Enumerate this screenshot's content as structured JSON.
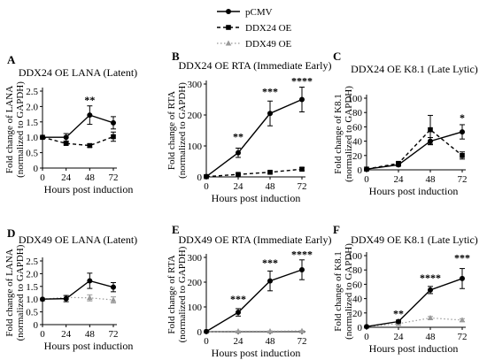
{
  "legend": {
    "entries": [
      {
        "label": "pCMV",
        "marker": "circle",
        "line": "solid"
      },
      {
        "label": "DDX24 OE",
        "marker": "square",
        "line": "dashed"
      },
      {
        "label": "DDX49 OE",
        "marker": "triangle",
        "line": "dotted"
      }
    ]
  },
  "colors": {
    "pcmv": "#000000",
    "ddx24": "#000000",
    "ddx49": "#999999"
  },
  "chart_data": [
    {
      "panel": "A",
      "type": "line",
      "title": "DDX24 OE LANA (Latent)",
      "xlabel": "Hours post induction",
      "ylabel_lines": [
        "Fold change of LANA",
        "(normalized to GAPDH)"
      ],
      "x": [
        0,
        24,
        48,
        72
      ],
      "xlim": [
        0,
        72
      ],
      "ylim": [
        0,
        2.5
      ],
      "xticks": [
        0,
        24,
        48,
        72
      ],
      "yticks": [
        0,
        0.5,
        1.0,
        1.5,
        2.0,
        2.5
      ],
      "yticklabels": [
        "0",
        "0.5",
        "1.0",
        "1.5",
        "2.0",
        "2.5"
      ],
      "series": [
        {
          "name": "pCMV",
          "key": "pcmv",
          "values": [
            1.0,
            1.0,
            1.72,
            1.47
          ],
          "errors": [
            0,
            0.12,
            0.3,
            0.2
          ]
        },
        {
          "name": "DDX24 OE",
          "key": "ddx24",
          "values": [
            1.0,
            0.8,
            0.73,
            1.02
          ],
          "errors": [
            0,
            0.05,
            0.05,
            0.15
          ]
        }
      ],
      "annotations": [
        {
          "x": 48,
          "text": "**",
          "y": 2.1
        }
      ]
    },
    {
      "panel": "B",
      "type": "line",
      "title": "DDX24 OE RTA (Immediate Early)",
      "xlabel": "Hours post induction",
      "ylabel_lines": [
        "Fold change of RTA",
        "(normalized to GAPDH)"
      ],
      "x": [
        0,
        24,
        48,
        72
      ],
      "xlim": [
        0,
        72
      ],
      "ylim": [
        0,
        300
      ],
      "xticks": [
        0,
        24,
        48,
        72
      ],
      "yticks": [
        0,
        100,
        200,
        300
      ],
      "yticklabels": [
        "0",
        "100",
        "200",
        "300"
      ],
      "series": [
        {
          "name": "pCMV",
          "key": "pcmv",
          "values": [
            1,
            78,
            205,
            250
          ],
          "errors": [
            0,
            15,
            40,
            40
          ]
        },
        {
          "name": "DDX24 OE",
          "key": "ddx24",
          "values": [
            1,
            8,
            15,
            25
          ],
          "errors": [
            0,
            3,
            3,
            5
          ]
        }
      ],
      "annotations": [
        {
          "x": 24,
          "text": "**",
          "y": 118
        },
        {
          "x": 48,
          "text": "***",
          "y": 265
        },
        {
          "x": 72,
          "text": "****",
          "y": 298
        }
      ]
    },
    {
      "panel": "C",
      "type": "line",
      "title": "DDX24 OE K8.1 (Late Lytic)",
      "xlabel": "Hours post induction",
      "ylabel_lines": [
        "Fold change of K8.1",
        "(normalized to GAPDH)"
      ],
      "x": [
        0,
        24,
        48,
        72
      ],
      "xlim": [
        0,
        72
      ],
      "ylim": [
        0,
        100
      ],
      "xticks": [
        0,
        24,
        48,
        72
      ],
      "yticks": [
        0,
        20,
        40,
        60,
        80,
        100
      ],
      "yticklabels": [
        "0",
        "20",
        "40",
        "60",
        "80",
        "100"
      ],
      "series": [
        {
          "name": "pCMV",
          "key": "pcmv",
          "values": [
            1,
            7,
            40,
            53
          ],
          "errors": [
            0,
            2,
            5,
            10
          ]
        },
        {
          "name": "DDX24 OE",
          "key": "ddx24",
          "values": [
            1,
            9,
            56,
            20
          ],
          "errors": [
            0,
            2,
            20,
            5
          ]
        }
      ],
      "annotations": [
        {
          "x": 72,
          "text": "*",
          "y": 68
        }
      ]
    },
    {
      "panel": "D",
      "type": "line",
      "title": "DDX49 OE LANA (Latent)",
      "xlabel": "Hours post induction",
      "ylabel_lines": [
        "Fold change of LANA",
        "(normalized to GAPDH)"
      ],
      "x": [
        0,
        24,
        48,
        72
      ],
      "xlim": [
        0,
        72
      ],
      "ylim": [
        0,
        2.5
      ],
      "xticks": [
        0,
        24,
        48,
        72
      ],
      "yticks": [
        0,
        0.5,
        1.0,
        1.5,
        2.0,
        2.5
      ],
      "yticklabels": [
        "0",
        "0.5",
        "1.0",
        "1.5",
        "2.0",
        "2.5"
      ],
      "series": [
        {
          "name": "pCMV",
          "key": "pcmv",
          "values": [
            1.0,
            1.02,
            1.72,
            1.47
          ],
          "errors": [
            0,
            0.12,
            0.3,
            0.18
          ]
        },
        {
          "name": "DDX49 OE",
          "key": "ddx49",
          "values": [
            1.0,
            1.07,
            1.05,
            0.97
          ],
          "errors": [
            0,
            0.08,
            0.12,
            0.12
          ]
        }
      ],
      "annotations": []
    },
    {
      "panel": "E",
      "type": "line",
      "title": "DDX49 OE RTA (Immediate Early)",
      "xlabel": "Hours post induction",
      "ylabel_lines": [
        "Fold change of RTA",
        "(normalized to GAPDH)"
      ],
      "x": [
        0,
        24,
        48,
        72
      ],
      "xlim": [
        0,
        72
      ],
      "ylim": [
        0,
        300
      ],
      "xticks": [
        0,
        24,
        48,
        72
      ],
      "yticks": [
        0,
        100,
        200,
        300
      ],
      "yticklabels": [
        "0",
        "100",
        "200",
        "300"
      ],
      "series": [
        {
          "name": "pCMV",
          "key": "pcmv",
          "values": [
            1,
            78,
            205,
            250
          ],
          "errors": [
            0,
            15,
            40,
            40
          ]
        },
        {
          "name": "DDX49 OE",
          "key": "ddx49",
          "values": [
            1,
            2,
            2,
            3
          ],
          "errors": [
            0,
            1,
            1,
            1
          ]
        }
      ],
      "annotations": [
        {
          "x": 24,
          "text": "***",
          "y": 118
        },
        {
          "x": 48,
          "text": "***",
          "y": 265
        },
        {
          "x": 72,
          "text": "****",
          "y": 298
        }
      ]
    },
    {
      "panel": "F",
      "type": "line",
      "title": "DDX49 OE K8.1 (Late Lytic)",
      "xlabel": "Hours post induction",
      "ylabel_lines": [
        "Fold change of K8.1",
        "(normalized to GAPDH)"
      ],
      "x": [
        0,
        24,
        48,
        72
      ],
      "xlim": [
        0,
        72
      ],
      "ylim": [
        0,
        100
      ],
      "xticks": [
        0,
        24,
        48,
        72
      ],
      "yticks": [
        0,
        20,
        40,
        60,
        80,
        100
      ],
      "yticklabels": [
        "0",
        "20",
        "40",
        "60",
        "80",
        "100"
      ],
      "series": [
        {
          "name": "pCMV",
          "key": "pcmv",
          "values": [
            1,
            8,
            52,
            68
          ],
          "errors": [
            0,
            2,
            5,
            14
          ]
        },
        {
          "name": "DDX49 OE",
          "key": "ddx49",
          "values": [
            1,
            5,
            13,
            10
          ],
          "errors": [
            0,
            1,
            2,
            2
          ]
        }
      ],
      "annotations": [
        {
          "x": 24,
          "text": "**",
          "y": 14
        },
        {
          "x": 48,
          "text": "****",
          "y": 64
        },
        {
          "x": 72,
          "text": "***",
          "y": 92
        }
      ]
    }
  ]
}
